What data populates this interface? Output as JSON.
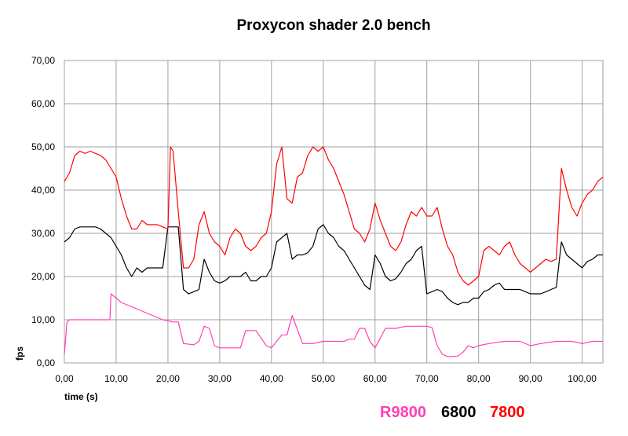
{
  "chart_data": {
    "type": "line",
    "title": "Proxycon shader 2.0 bench",
    "xlabel": "time (s)",
    "ylabel": "fps",
    "xlim": [
      0,
      104
    ],
    "ylim": [
      0,
      70
    ],
    "x_ticks": [
      "0,00",
      "10,00",
      "20,00",
      "30,00",
      "40,00",
      "50,00",
      "60,00",
      "70,00",
      "80,00",
      "90,00",
      "100,00"
    ],
    "x_tick_values": [
      0,
      10,
      20,
      30,
      40,
      50,
      60,
      70,
      80,
      90,
      100
    ],
    "y_ticks": [
      "0,00",
      "10,00",
      "20,00",
      "30,00",
      "40,00",
      "50,00",
      "60,00",
      "70,00"
    ],
    "y_tick_values": [
      0,
      10,
      20,
      30,
      40,
      50,
      60,
      70
    ],
    "grid": true,
    "legend_placement": "bottom-right",
    "series": [
      {
        "name": "R9800",
        "color": "#ff3fb4",
        "x": [
          0,
          0.5,
          1,
          3,
          5,
          7,
          8.8,
          9,
          10,
          11,
          13,
          15,
          17,
          19,
          21,
          22,
          23,
          25,
          26,
          27,
          28,
          29,
          30,
          32,
          34,
          35,
          37,
          39,
          40,
          41,
          42,
          43,
          44,
          46,
          47,
          48,
          50,
          52,
          54,
          55,
          56,
          57,
          58,
          59,
          60,
          62,
          64,
          66,
          68,
          70,
          71,
          72,
          73,
          74,
          75,
          76,
          77,
          78,
          79,
          80,
          82,
          85,
          88,
          90,
          92,
          95,
          98,
          100,
          102,
          104
        ],
        "y": [
          2,
          9.5,
          10,
          10,
          10,
          10,
          10,
          16,
          15,
          14,
          13,
          12,
          11,
          10,
          9.5,
          9.5,
          4.5,
          4.2,
          5,
          8.5,
          8,
          4,
          3.5,
          3.5,
          3.5,
          7.5,
          7.5,
          4,
          3.5,
          5,
          6.5,
          6.5,
          11,
          4.5,
          4.5,
          4.5,
          5,
          5,
          5,
          5.5,
          5.5,
          8,
          8,
          5,
          3.5,
          8,
          8,
          8.5,
          8.5,
          8.5,
          8.2,
          4,
          2,
          1.5,
          1.5,
          1.6,
          2.5,
          4,
          3.5,
          4,
          4.5,
          5,
          5,
          4,
          4.5,
          5,
          5,
          4.5,
          5,
          5
        ]
      },
      {
        "name": "6800",
        "color": "#000000",
        "x": [
          0,
          1,
          2,
          3,
          4,
          5,
          6,
          7,
          8,
          9,
          10,
          11,
          12,
          13,
          14,
          15,
          16,
          17,
          18,
          19,
          20,
          21,
          22,
          23,
          24,
          25,
          26,
          27,
          28,
          29,
          30,
          31,
          32,
          33,
          34,
          35,
          36,
          37,
          38,
          39,
          40,
          41,
          42,
          43,
          44,
          45,
          46,
          47,
          48,
          49,
          50,
          51,
          52,
          53,
          54,
          55,
          56,
          57,
          58,
          59,
          60,
          61,
          62,
          63,
          64,
          65,
          66,
          67,
          68,
          69,
          70,
          71,
          72,
          73,
          74,
          75,
          76,
          77,
          78,
          79,
          80,
          81,
          82,
          83,
          84,
          85,
          86,
          87,
          88,
          89,
          90,
          91,
          92,
          93,
          94,
          95,
          96,
          97,
          98,
          99,
          100,
          101,
          102,
          103,
          104
        ],
        "y": [
          28,
          29,
          31,
          31.5,
          31.5,
          31.5,
          31.5,
          31,
          30,
          29,
          27,
          25,
          22,
          20,
          22,
          21,
          22,
          22,
          22,
          22,
          31.5,
          31.5,
          31.5,
          17,
          16,
          16.5,
          17,
          24,
          21,
          19,
          18.5,
          19,
          20,
          20,
          20,
          21,
          19,
          19,
          20,
          20,
          22,
          28,
          29,
          30,
          24,
          25,
          25,
          25.5,
          27,
          31,
          32,
          30,
          29,
          27,
          26,
          24,
          22,
          20,
          18,
          17,
          25,
          23,
          20,
          19,
          19.5,
          21,
          23,
          24,
          26,
          27,
          16,
          16.5,
          17,
          16.5,
          15,
          14,
          13.5,
          14,
          14,
          15,
          15,
          16.5,
          17,
          18,
          18.5,
          17,
          17,
          17,
          17,
          16.5,
          16,
          16,
          16,
          16.5,
          17,
          17.5,
          28,
          25,
          24,
          23,
          22,
          23.5,
          24,
          25,
          25
        ]
      },
      {
        "name": "7800",
        "color": "#ff0000",
        "x": [
          0,
          1,
          2,
          3,
          4,
          5,
          6,
          7,
          8,
          9,
          10,
          11,
          12,
          13,
          14,
          15,
          16,
          17,
          18,
          19,
          20,
          20.5,
          21,
          22,
          23,
          24,
          25,
          26,
          27,
          28,
          29,
          30,
          31,
          32,
          33,
          34,
          35,
          36,
          37,
          38,
          39,
          40,
          41,
          42,
          43,
          44,
          45,
          46,
          47,
          48,
          49,
          50,
          51,
          52,
          53,
          54,
          55,
          56,
          57,
          58,
          59,
          60,
          61,
          62,
          63,
          64,
          65,
          66,
          67,
          68,
          69,
          70,
          71,
          72,
          73,
          74,
          75,
          76,
          77,
          78,
          79,
          80,
          81,
          82,
          83,
          84,
          85,
          86,
          87,
          88,
          89,
          90,
          91,
          92,
          93,
          94,
          95,
          96,
          97,
          98,
          99,
          100,
          101,
          102,
          103,
          104
        ],
        "y": [
          42,
          44,
          48,
          49,
          48.5,
          49,
          48.5,
          48,
          47,
          45,
          43,
          38,
          34,
          31,
          31,
          33,
          32,
          32,
          32,
          31.5,
          31,
          50,
          49,
          35,
          22,
          22,
          24,
          32,
          35,
          30,
          28,
          27,
          25,
          29,
          31,
          30,
          27,
          26,
          27,
          29,
          30,
          35,
          46,
          50,
          38,
          37,
          43,
          44,
          48,
          50,
          49,
          50,
          47,
          45,
          42,
          39,
          35,
          31,
          30,
          28,
          31,
          37,
          33,
          30,
          27,
          26,
          28,
          32,
          35,
          34,
          36,
          34,
          34,
          36,
          31,
          27,
          25,
          21,
          19,
          18,
          19,
          20,
          26,
          27,
          26,
          25,
          27,
          28,
          25,
          23,
          22,
          21,
          22,
          23,
          24,
          23.5,
          24,
          45,
          40,
          36,
          34,
          37,
          39,
          40,
          42,
          43
        ]
      }
    ]
  }
}
